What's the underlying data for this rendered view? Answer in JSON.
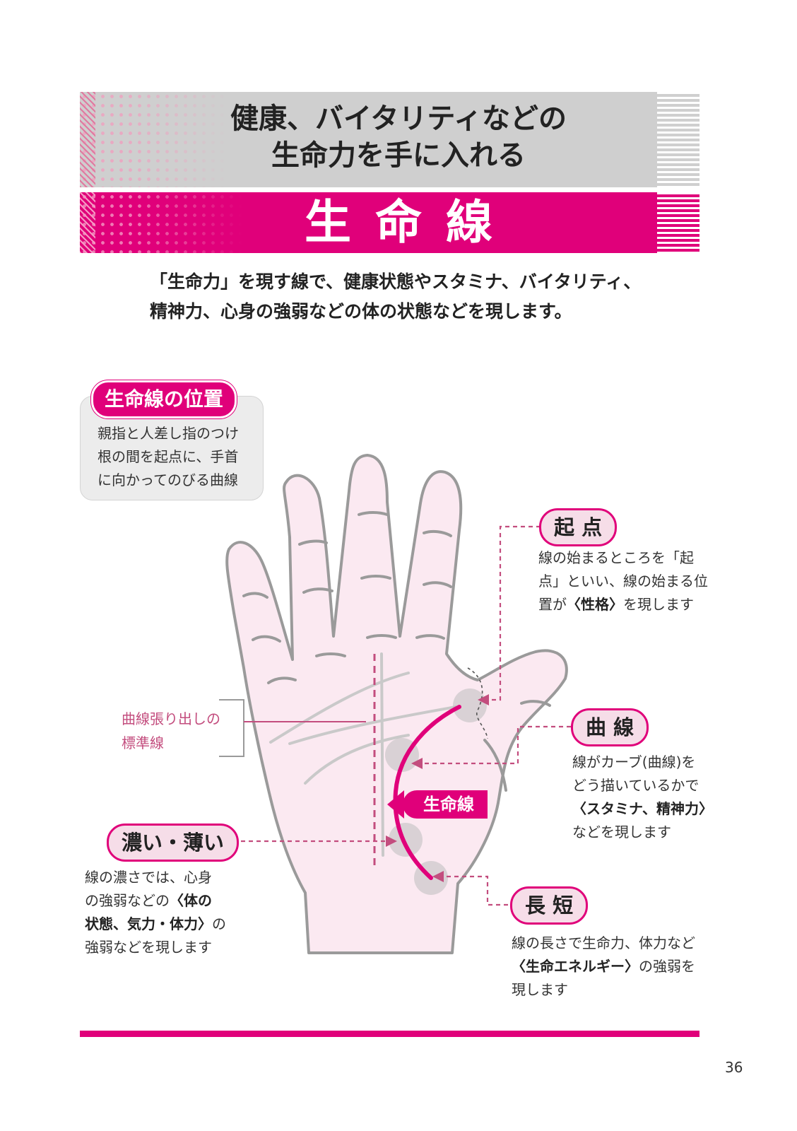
{
  "header": {
    "title_line1": "健康、バイタリティなどの",
    "title_line2": "生命力を手に入れる",
    "section_title": "生命線"
  },
  "intro": {
    "line1": "「生命力」を現す線で、健康状態やスタミナ、バイタリティ、",
    "line2": "精神力、心身の強弱などの体の状態などを現します。"
  },
  "position_box": {
    "tag": "生命線の位置",
    "lines": [
      "親指と人差し指のつけ",
      "根の間を起点に、手首",
      "に向かってのびる曲線"
    ]
  },
  "standard_line_label": {
    "line1": "曲線張り出しの",
    "line2": "標準線"
  },
  "hand_label": "生命線",
  "callouts": {
    "start": {
      "title": "起 点",
      "line1": "線の始まるところを「起",
      "line2": "点」といい、線の始まる位",
      "line3_pre": "置が",
      "line3_bold": "〈性格〉",
      "line3_post": "を現します"
    },
    "curve": {
      "title": "曲 線",
      "line1": "線がカーブ(曲線)を",
      "line2": "どう描いているかで",
      "line3_bold": "〈スタミナ、精神力〉",
      "line4": "などを現します"
    },
    "depth": {
      "title": "濃い・薄い",
      "line1": "線の濃さでは、心身",
      "line2_pre": "の強弱などの",
      "line2_bold": "〈体の",
      "line3_bold": "状態、気力・体力〉",
      "line3_post": "の",
      "line4": "強弱などを現します"
    },
    "length": {
      "title": "長 短",
      "line1": "線の長さで生命力、体力など",
      "line2_bold": "〈生命エネルギー〉",
      "line2_post": "の強弱を",
      "line3": "現します"
    }
  },
  "page_number": "36",
  "colors": {
    "accent": "#e0007a",
    "palm_fill": "#fbe9f1",
    "outline": "#9a9a9a",
    "gray_band": "#cfcfcf"
  }
}
